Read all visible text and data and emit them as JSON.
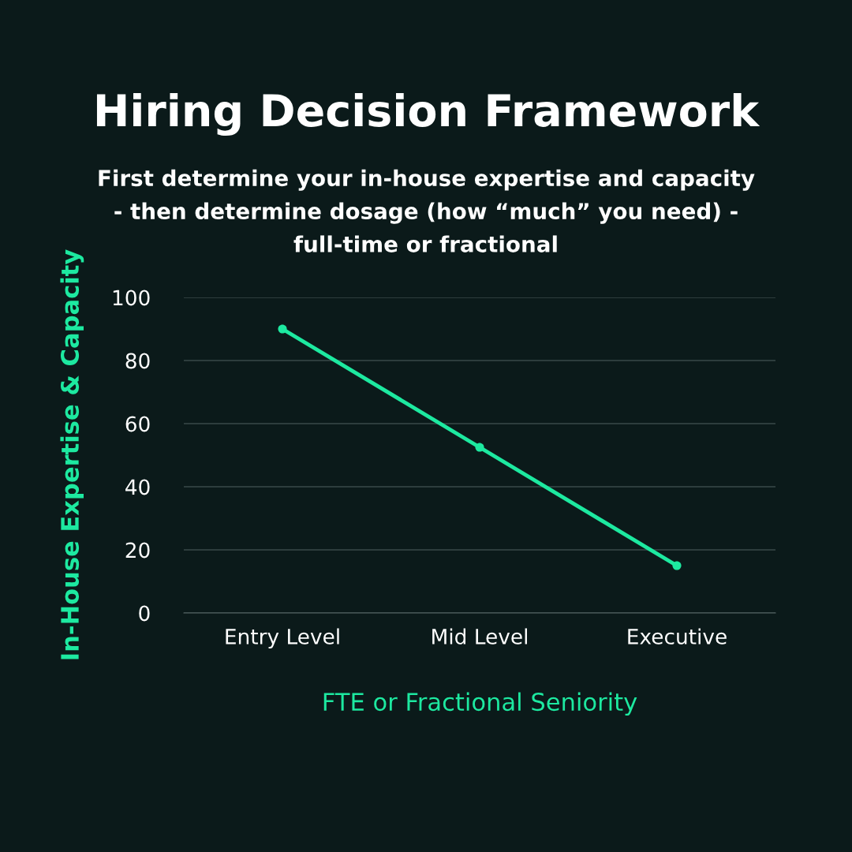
{
  "chart_data": {
    "type": "line",
    "title": "Hiring Decision Framework",
    "subtitle": "First determine your in-house expertise and capacity\n- then determine dosage (how “much” you need) -\nfull-time or fractional",
    "xlabel": "FTE or Fractional Seniority",
    "ylabel": "In-House Expertise & Capacity",
    "categories": [
      "Entry Level",
      "Mid Level",
      "Executive"
    ],
    "series": [
      {
        "color": "#1de9a0",
        "values": [
          90,
          52.5,
          15
        ]
      }
    ],
    "ylim": [
      0,
      100
    ],
    "yticks": [
      0,
      20,
      40,
      60,
      80,
      100
    ],
    "grid": "y",
    "marker": "circle",
    "line_style": "solid"
  }
}
